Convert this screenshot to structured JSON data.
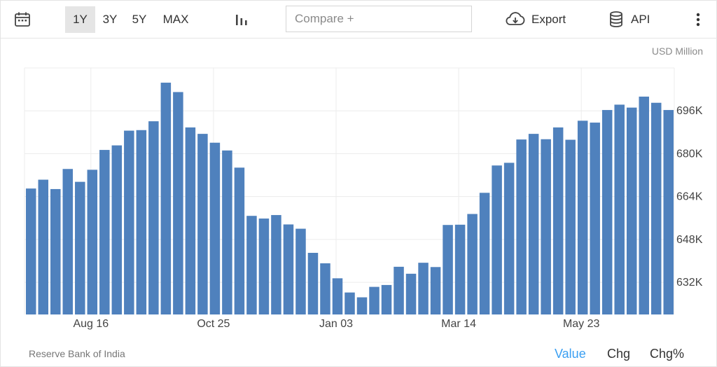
{
  "toolbar": {
    "ranges": [
      "1Y",
      "3Y",
      "5Y",
      "MAX"
    ],
    "active_range": "1Y",
    "compare_placeholder": "Compare +",
    "export_label": "Export",
    "api_label": "API"
  },
  "unit": "USD Million",
  "source": "Reserve Bank of India",
  "modes": [
    "Value",
    "Chg",
    "Chg%"
  ],
  "active_mode": "Value",
  "colors": {
    "bar": "#4f81bd",
    "active_mode": "#3a9ff2",
    "grid": "#ececec"
  },
  "chart_data": {
    "type": "bar",
    "title": "",
    "xlabel": "",
    "ylabel": "",
    "unit": "USD Million",
    "ylim": [
      620000,
      712000
    ],
    "yticks": [
      632000,
      648000,
      664000,
      680000,
      696000
    ],
    "ytick_labels": [
      "632K",
      "648K",
      "664K",
      "680K",
      "696K"
    ],
    "xtick_labels": [
      {
        "label": "Aug 16",
        "index": 5
      },
      {
        "label": "Oct 25",
        "index": 15
      },
      {
        "label": "Jan 03",
        "index": 25
      },
      {
        "label": "Mar 14",
        "index": 35
      },
      {
        "label": "May 23",
        "index": 45
      }
    ],
    "grid": true,
    "legend": "none",
    "values": [
      667000,
      670300,
      666800,
      674300,
      669500,
      674000,
      681400,
      683100,
      688600,
      688800,
      692100,
      706500,
      703000,
      689800,
      687400,
      684100,
      681200,
      674800,
      656800,
      655800,
      657100,
      653600,
      652000,
      643000,
      639100,
      633500,
      628200,
      626400,
      630300,
      631000,
      637800,
      635200,
      639300,
      637700,
      653400,
      653500,
      657500,
      665400,
      675600,
      676600,
      685300,
      687400,
      685400,
      689800,
      685200,
      692300,
      691600,
      696300,
      698300,
      697200,
      701300,
      699000,
      696300
    ]
  }
}
